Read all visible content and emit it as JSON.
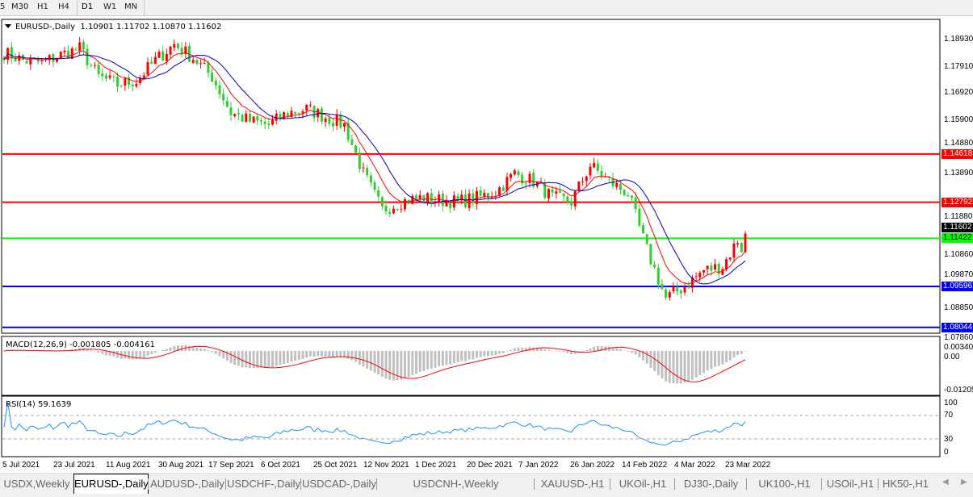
{
  "toolbar": {
    "timeframes": [
      "5",
      "M30",
      "H1",
      "H4",
      "D1",
      "W1",
      "MN"
    ]
  },
  "chart": {
    "symbol_label": "EURUSD-,Daily",
    "ohlc": "1.10901 1.11702 1.10870 1.11602",
    "price_axis": [
      "1.18930",
      "1.17910",
      "1.16920",
      "1.15900",
      "1.14880",
      "1.13890",
      "1.11880",
      "1.10860",
      "1.09870",
      "1.08850",
      "1.07860"
    ],
    "current_price": "1.11602",
    "levels": [
      {
        "price": 1.14618,
        "label": "1.14618",
        "color": "#ff0000"
      },
      {
        "price": 1.12792,
        "label": "1.12792",
        "color": "#ff0000"
      },
      {
        "price": 1.11422,
        "label": "1.11422",
        "color": "#00ff00"
      },
      {
        "price": 1.09596,
        "label": "1.09596",
        "color": "#0000ff"
      },
      {
        "price": 1.08044,
        "label": "1.08044",
        "color": "#0000ff"
      }
    ],
    "colors": {
      "bull": "#ff0000",
      "bear": "#32cd32",
      "ma_fast": "#ff0000",
      "ma_slow": "#0000c0",
      "macd_hist": "#c0c0c0",
      "macd_signal": "#ff0000",
      "rsi": "#1e90ff"
    }
  },
  "macd": {
    "label": "MACD(12,26,9) -0.001805 -0.004161",
    "axis": [
      "0.003408",
      "0.00",
      "-0.01205"
    ]
  },
  "rsi": {
    "label": "RSI(14) 59.1639",
    "axis": [
      "100",
      "70",
      "30",
      "0"
    ]
  },
  "chart_data": {
    "type": "candlestick",
    "title": "EURUSD-,Daily",
    "x_tick_labels": [
      "5 Jul 2021",
      "23 Jul 2021",
      "11 Aug 2021",
      "30 Aug 2021",
      "17 Sep 2021",
      "6 Oct 2021",
      "25 Oct 2021",
      "12 Nov 2021",
      "1 Dec 2021",
      "20 Dec 2021",
      "7 Jan 2022",
      "26 Jan 2022",
      "14 Feb 2022",
      "4 Mar 2022",
      "23 Mar 2022"
    ],
    "ylim": [
      1.0786,
      1.1893
    ],
    "approx_weekly_close": [
      1.1847,
      1.1817,
      1.1807,
      1.1838,
      1.1862,
      1.1755,
      1.1725,
      1.174,
      1.1817,
      1.1878,
      1.1826,
      1.1755,
      1.1618,
      1.1587,
      1.1572,
      1.1618,
      1.1633,
      1.1602,
      1.1572,
      1.1388,
      1.125,
      1.1281,
      1.1296,
      1.1287,
      1.1281,
      1.1296,
      1.1318,
      1.1388,
      1.1358,
      1.1296,
      1.1281,
      1.1419,
      1.1358,
      1.1312,
      1.1097,
      1.0914,
      1.096,
      1.1021,
      1.1036,
      1.116
    ],
    "last_bar": {
      "open": 1.10901,
      "high": 1.11702,
      "low": 1.1087,
      "close": 1.11602
    }
  },
  "tabs": [
    {
      "label": "USDX,Weekly"
    },
    {
      "label": "EURUSD-,Daily",
      "active": true
    },
    {
      "label": "AUDUSD-,Daily"
    },
    {
      "label": "USDCHF-,Daily"
    },
    {
      "label": "USDCAD-,Daily"
    },
    {
      "label": "USDCNH-,Weekly"
    },
    {
      "label": "XAUUSD-,H1"
    },
    {
      "label": "UKOil-,H1"
    },
    {
      "label": "DJ30-,Daily"
    },
    {
      "label": "UK100-,H1"
    },
    {
      "label": "USOil-,H1"
    },
    {
      "label": "HK50-,H1"
    }
  ]
}
